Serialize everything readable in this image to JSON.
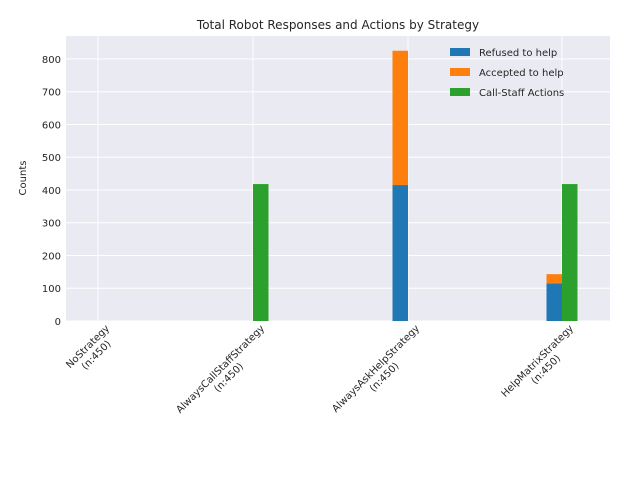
{
  "chart_data": {
    "type": "bar",
    "title": "Total Robot Responses and Actions by Strategy",
    "xlabel": "",
    "ylabel": "Counts",
    "ylim": [
      0,
      870
    ],
    "yticks": [
      0,
      100,
      200,
      300,
      400,
      500,
      600,
      700,
      800
    ],
    "grid": true,
    "legend_placement": "top-right",
    "categories": [
      [
        "NoStrategy",
        "(n:450)"
      ],
      [
        "AlwaysCallStaffStrategy",
        "(n:450)"
      ],
      [
        "AlwaysAskHelpStrategy",
        "(n:450)"
      ],
      [
        "HelpMatrixStrategy",
        "(n:450)"
      ]
    ],
    "series": [
      {
        "name": "Refused to help",
        "color": "#1f77b4",
        "values": [
          0,
          0,
          415,
          115
        ],
        "stack": "responses"
      },
      {
        "name": "Accepted to help",
        "color": "#ff7f0e",
        "values": [
          0,
          0,
          410,
          28
        ],
        "stack": "responses"
      },
      {
        "name": "Call-Staff Actions",
        "color": "#2ca02c",
        "values": [
          0,
          418,
          0,
          418
        ],
        "stack": "actions"
      }
    ]
  }
}
